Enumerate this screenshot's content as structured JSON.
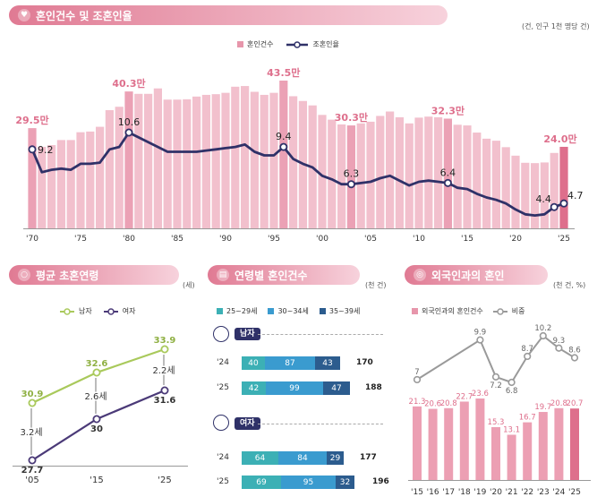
{
  "top": {
    "title": "혼인건수 및 조혼인율",
    "unit": "(건, 인구 1천 명당 건)",
    "legend": {
      "bar": "혼인건수",
      "line": "조혼인율"
    },
    "highlights": [
      {
        "year": 1970,
        "label": "29.5만"
      },
      {
        "year": 1980,
        "label": "40.3만"
      },
      {
        "year": 1996,
        "label": "43.5만"
      },
      {
        "year": 2003,
        "label": "30.3만"
      },
      {
        "year": 2013,
        "label": "32.3만"
      },
      {
        "year": 2025,
        "label": "24.0만"
      }
    ],
    "line_labels": [
      {
        "year": 1970,
        "label": "9.2"
      },
      {
        "year": 1980,
        "label": "10.6"
      },
      {
        "year": 1996,
        "label": "9.4"
      },
      {
        "year": 2003,
        "label": "6.3"
      },
      {
        "year": 2013,
        "label": "6.4"
      },
      {
        "year": 2024,
        "label": "4.4"
      },
      {
        "year": 2025,
        "label": "4.7"
      }
    ],
    "x_ticks": [
      "'70",
      "'75",
      "'80",
      "'85",
      "'90",
      "'95",
      "'00",
      "'05",
      "'10",
      "'15",
      "'20",
      "'25"
    ]
  },
  "colors": {
    "pink": "#e796ab",
    "pink_light": "#f2c0cd",
    "pink_dark": "#de6f8c",
    "navy": "#2f3168",
    "green": "#a9c95b",
    "purple": "#4b3a78",
    "gray": "#9a9a9a",
    "teal": "#3cb0b5",
    "blue": "#3a9bcf",
    "navyblue": "#2c5c8e"
  },
  "chart_data": [
    {
      "type": "bar",
      "title": "혼인건수 및 조혼인율",
      "series": [
        {
          "name": "혼인건수",
          "unit": "만 건",
          "x": [
            1970,
            1971,
            1972,
            1973,
            1974,
            1975,
            1976,
            1977,
            1978,
            1979,
            1980,
            1981,
            1982,
            1983,
            1984,
            1985,
            1986,
            1987,
            1988,
            1989,
            1990,
            1991,
            1992,
            1993,
            1994,
            1995,
            1996,
            1997,
            1998,
            1999,
            2000,
            2001,
            2002,
            2003,
            2004,
            2005,
            2006,
            2007,
            2008,
            2009,
            2010,
            2011,
            2012,
            2013,
            2014,
            2015,
            2016,
            2017,
            2018,
            2019,
            2020,
            2021,
            2022,
            2023,
            2024,
            2025
          ],
          "values": [
            29.5,
            24.0,
            24.5,
            26.0,
            26.0,
            28.3,
            28.5,
            29.9,
            34.8,
            35.8,
            40.3,
            39.6,
            39.6,
            41.2,
            37.9,
            37.9,
            38.0,
            38.8,
            39.3,
            39.5,
            39.9,
            41.7,
            41.9,
            40.2,
            39.3,
            39.9,
            43.5,
            38.9,
            37.5,
            36.2,
            33.4,
            32.0,
            30.6,
            30.3,
            30.9,
            31.4,
            33.1,
            34.4,
            32.7,
            30.9,
            32.6,
            32.9,
            32.7,
            32.3,
            30.5,
            30.3,
            28.2,
            26.4,
            25.8,
            23.9,
            21.4,
            19.3,
            19.2,
            19.4,
            22.2,
            24.0
          ]
        },
        {
          "name": "조혼인율",
          "unit": "건/천명",
          "x": [
            1970,
            1971,
            1972,
            1973,
            1974,
            1975,
            1976,
            1977,
            1978,
            1979,
            1980,
            1981,
            1982,
            1983,
            1984,
            1985,
            1986,
            1987,
            1988,
            1989,
            1990,
            1991,
            1992,
            1993,
            1994,
            1995,
            1996,
            1997,
            1998,
            1999,
            2000,
            2001,
            2002,
            2003,
            2004,
            2005,
            2006,
            2007,
            2008,
            2009,
            2010,
            2011,
            2012,
            2013,
            2014,
            2015,
            2016,
            2017,
            2018,
            2019,
            2020,
            2021,
            2022,
            2023,
            2024,
            2025
          ],
          "values": [
            9.2,
            7.3,
            7.5,
            7.6,
            7.5,
            8.0,
            8.0,
            8.1,
            9.2,
            9.4,
            10.6,
            10.2,
            9.8,
            9.4,
            9.0,
            9.0,
            9.0,
            9.0,
            9.1,
            9.2,
            9.3,
            9.4,
            9.6,
            9.0,
            8.7,
            8.7,
            9.4,
            8.4,
            8.0,
            7.7,
            7.0,
            6.7,
            6.3,
            6.3,
            6.4,
            6.5,
            6.8,
            7.0,
            6.6,
            6.2,
            6.5,
            6.6,
            6.5,
            6.4,
            6.0,
            5.9,
            5.5,
            5.2,
            5.0,
            4.7,
            4.2,
            3.8,
            3.7,
            3.8,
            4.4,
            4.7
          ]
        }
      ],
      "ylim": [
        0,
        46
      ]
    },
    {
      "type": "line",
      "title": "평균 초혼연령",
      "unit": "(세)",
      "x": [
        "'05",
        "'15",
        "'25"
      ],
      "series": [
        {
          "name": "남자",
          "values": [
            30.9,
            32.6,
            33.9
          ]
        },
        {
          "name": "여자",
          "values": [
            27.7,
            30.0,
            31.6
          ]
        }
      ],
      "gaps": [
        "3.2세",
        "2.6세",
        "2.2세"
      ]
    },
    {
      "type": "bar",
      "title": "연령별 혼인건수",
      "unit": "(천 건)",
      "categories": [
        "25~29세",
        "30~34세",
        "35~39세"
      ],
      "groups": [
        {
          "name": "남자",
          "rows": [
            {
              "year": "'24",
              "values": [
                40,
                87,
                43
              ],
              "total": 170
            },
            {
              "year": "'25",
              "values": [
                42,
                99,
                47
              ],
              "total": 188
            }
          ]
        },
        {
          "name": "여자",
          "rows": [
            {
              "year": "'24",
              "values": [
                64,
                84,
                29
              ],
              "total": 177
            },
            {
              "year": "'25",
              "values": [
                69,
                95,
                32
              ],
              "total": 196
            }
          ]
        }
      ]
    },
    {
      "type": "bar",
      "title": "외국인과의 혼인",
      "unit": "(천 건, %)",
      "x": [
        "'15",
        "'16",
        "'17",
        "'18",
        "'19",
        "'20",
        "'21",
        "'22",
        "'23",
        "'24",
        "'25"
      ],
      "series": [
        {
          "name": "외국인과의 혼인건수",
          "values": [
            21.3,
            20.6,
            20.8,
            22.7,
            23.6,
            15.3,
            13.1,
            16.7,
            19.7,
            20.8,
            20.7
          ]
        },
        {
          "name": "비중",
          "values": [
            7.0,
            null,
            null,
            null,
            9.9,
            7.2,
            6.8,
            8.7,
            10.2,
            9.3,
            8.6
          ]
        }
      ]
    }
  ],
  "age": {
    "title": "평균 초혼연령",
    "unit": "(세)",
    "legend_m": "남자",
    "legend_f": "여자"
  },
  "agegroup": {
    "title": "연령별 혼인건수",
    "unit": "(천 건)",
    "leg1": "25~29세",
    "leg2": "30~34세",
    "leg3": "35~39세",
    "male": "남자",
    "female": "여자"
  },
  "foreign": {
    "title": "외국인과의 혼인",
    "unit": "(천 건, %)",
    "leg_bar": "외국인과의 혼인건수",
    "leg_line": "비중"
  }
}
